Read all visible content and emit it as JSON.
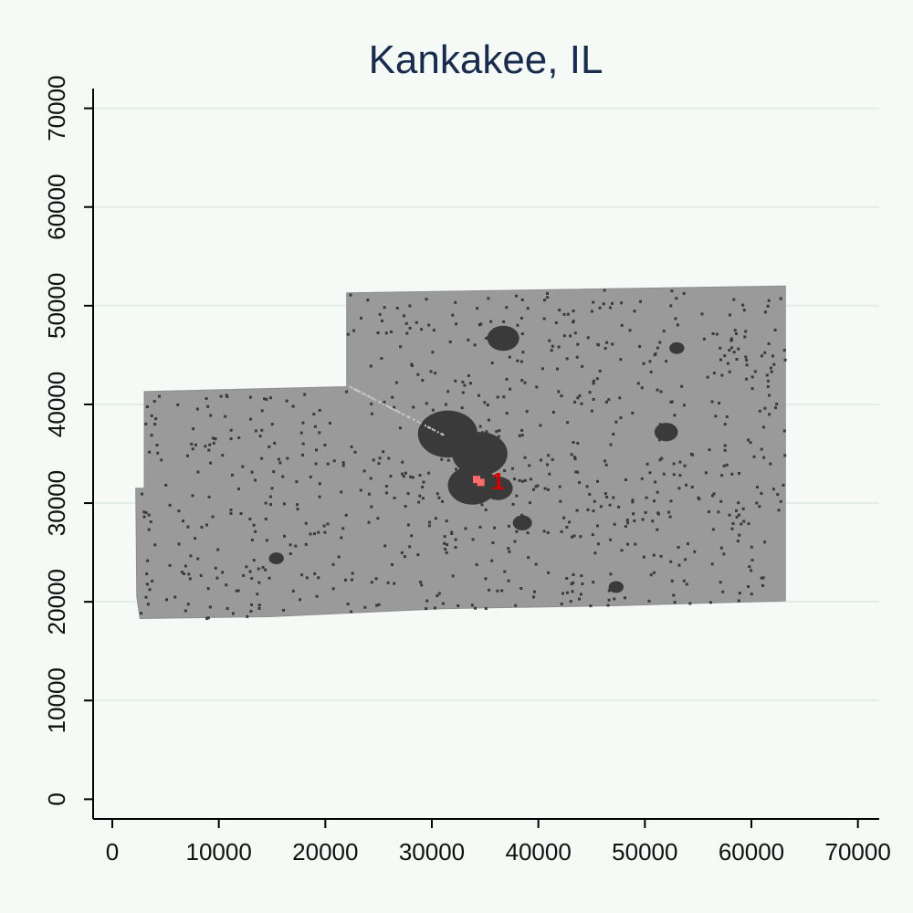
{
  "chart_data": {
    "type": "scatter",
    "title": "Kankakee, IL",
    "xlabel": "",
    "ylabel": "",
    "xlim": [
      -1800,
      72000
    ],
    "ylim": [
      -2000,
      72000
    ],
    "x_ticks": [
      0,
      10000,
      20000,
      30000,
      40000,
      50000,
      60000,
      70000
    ],
    "y_ticks": [
      0,
      10000,
      20000,
      30000,
      40000,
      50000,
      60000,
      70000
    ],
    "x_tick_labels": [
      "0",
      "10000",
      "20000",
      "30000",
      "40000",
      "50000",
      "60000",
      "70000"
    ],
    "y_tick_labels": [
      "0",
      "10000",
      "20000",
      "30000",
      "40000",
      "50000",
      "60000",
      "70000"
    ],
    "grid": "horizontal",
    "legend": "none",
    "region": {
      "name": "county-area",
      "color": "#9a9a9a",
      "outline": [
        [
          2200,
          31500
        ],
        [
          3000,
          31500
        ],
        [
          3000,
          41300
        ],
        [
          22000,
          41800
        ],
        [
          22000,
          51300
        ],
        [
          63200,
          52000
        ],
        [
          63200,
          20100
        ],
        [
          47000,
          19600
        ],
        [
          31000,
          19300
        ],
        [
          15000,
          18500
        ],
        [
          2600,
          18300
        ],
        [
          2300,
          20500
        ],
        [
          2200,
          31500
        ]
      ]
    },
    "series": [
      {
        "name": "",
        "color": "#3a3a3a",
        "clusters": [
          {
            "x": 31500,
            "y": 37000,
            "r": 2800
          },
          {
            "x": 34500,
            "y": 35000,
            "r": 2600
          },
          {
            "x": 33800,
            "y": 31800,
            "r": 2300
          },
          {
            "x": 36200,
            "y": 31500,
            "r": 1400
          },
          {
            "x": 36700,
            "y": 46700,
            "r": 1500
          },
          {
            "x": 52000,
            "y": 37200,
            "r": 1100
          },
          {
            "x": 53000,
            "y": 45700,
            "r": 700
          },
          {
            "x": 15400,
            "y": 24400,
            "r": 700
          },
          {
            "x": 47300,
            "y": 21500,
            "r": 700
          },
          {
            "x": 38500,
            "y": 28000,
            "r": 900
          }
        ],
        "point_count": 800
      },
      {
        "name": "",
        "color": "#ff6a6a",
        "points": [
          {
            "x": 34200,
            "y": 32400
          },
          {
            "x": 34600,
            "y": 32100
          }
        ]
      }
    ],
    "annotations": [
      {
        "text": "1",
        "x": 35600,
        "y": 32300,
        "color": "#d40000"
      }
    ]
  }
}
